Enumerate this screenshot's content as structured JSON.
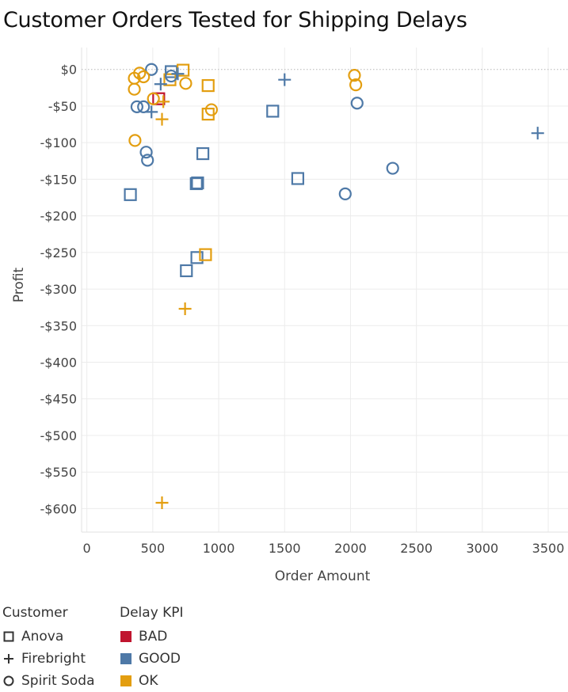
{
  "chart_data": {
    "type": "scatter",
    "title": "Customer Orders Tested for Shipping Delays",
    "xlabel": "Order Amount",
    "ylabel": "Profit",
    "xlim": [
      -40,
      3650
    ],
    "ylim": [
      -632,
      30
    ],
    "x_ticks": [
      0,
      500,
      1000,
      1500,
      2000,
      2500,
      3000,
      3500
    ],
    "y_ticks": [
      0,
      -50,
      -100,
      -150,
      -200,
      -250,
      -300,
      -350,
      -400,
      -450,
      -500,
      -550,
      -600
    ],
    "y_tick_labels": [
      "$0",
      "-$50",
      "-$100",
      "-$150",
      "-$200",
      "-$250",
      "-$300",
      "-$350",
      "-$400",
      "-$450",
      "-$500",
      "-$550",
      "-$600"
    ],
    "grid": true,
    "legend_placement": "bottom-left",
    "shape_legend": {
      "title": "Customer",
      "items": [
        {
          "label": "Anova",
          "shape": "square"
        },
        {
          "label": "Firebright",
          "shape": "plus"
        },
        {
          "label": "Spirit Soda",
          "shape": "circle"
        }
      ]
    },
    "color_legend": {
      "title": "Delay KPI",
      "items": [
        {
          "label": "BAD",
          "color": "#c0152f"
        },
        {
          "label": "GOOD",
          "color": "#4e79a7"
        },
        {
          "label": "OK",
          "color": "#e39e10"
        }
      ]
    },
    "points": [
      {
        "x": 545,
        "y": -40,
        "customer": "Anova",
        "kpi": "BAD"
      },
      {
        "x": 330,
        "y": -171,
        "customer": "Anova",
        "kpi": "GOOD"
      },
      {
        "x": 640,
        "y": -3,
        "customer": "Anova",
        "kpi": "GOOD"
      },
      {
        "x": 840,
        "y": -155,
        "customer": "Anova",
        "kpi": "GOOD"
      },
      {
        "x": 830,
        "y": -156,
        "customer": "Anova",
        "kpi": "GOOD"
      },
      {
        "x": 880,
        "y": -115,
        "customer": "Anova",
        "kpi": "GOOD"
      },
      {
        "x": 835,
        "y": -257,
        "customer": "Anova",
        "kpi": "GOOD"
      },
      {
        "x": 755,
        "y": -275,
        "customer": "Anova",
        "kpi": "GOOD"
      },
      {
        "x": 1410,
        "y": -57,
        "customer": "Anova",
        "kpi": "GOOD"
      },
      {
        "x": 1600,
        "y": -149,
        "customer": "Anova",
        "kpi": "GOOD"
      },
      {
        "x": 730,
        "y": -1,
        "customer": "Anova",
        "kpi": "OK"
      },
      {
        "x": 630,
        "y": -14,
        "customer": "Anova",
        "kpi": "OK"
      },
      {
        "x": 920,
        "y": -22,
        "customer": "Anova",
        "kpi": "OK"
      },
      {
        "x": 920,
        "y": -61,
        "customer": "Anova",
        "kpi": "OK"
      },
      {
        "x": 900,
        "y": -253,
        "customer": "Anova",
        "kpi": "OK"
      },
      {
        "x": 560,
        "y": -20,
        "customer": "Firebright",
        "kpi": "GOOD"
      },
      {
        "x": 690,
        "y": -6,
        "customer": "Firebright",
        "kpi": "GOOD"
      },
      {
        "x": 490,
        "y": -58,
        "customer": "Firebright",
        "kpi": "GOOD"
      },
      {
        "x": 1500,
        "y": -14,
        "customer": "Firebright",
        "kpi": "GOOD"
      },
      {
        "x": 3420,
        "y": -87,
        "customer": "Firebright",
        "kpi": "GOOD"
      },
      {
        "x": 580,
        "y": -44,
        "customer": "Firebright",
        "kpi": "OK"
      },
      {
        "x": 570,
        "y": -68,
        "customer": "Firebright",
        "kpi": "OK"
      },
      {
        "x": 745,
        "y": -327,
        "customer": "Firebright",
        "kpi": "OK"
      },
      {
        "x": 570,
        "y": -592,
        "customer": "Firebright",
        "kpi": "OK"
      },
      {
        "x": 490,
        "y": 0,
        "customer": "Spirit Soda",
        "kpi": "GOOD"
      },
      {
        "x": 380,
        "y": -51,
        "customer": "Spirit Soda",
        "kpi": "GOOD"
      },
      {
        "x": 430,
        "y": -51,
        "customer": "Spirit Soda",
        "kpi": "GOOD"
      },
      {
        "x": 450,
        "y": -113,
        "customer": "Spirit Soda",
        "kpi": "GOOD"
      },
      {
        "x": 460,
        "y": -124,
        "customer": "Spirit Soda",
        "kpi": "GOOD"
      },
      {
        "x": 640,
        "y": -9,
        "customer": "Spirit Soda",
        "kpi": "GOOD"
      },
      {
        "x": 2050,
        "y": -46,
        "customer": "Spirit Soda",
        "kpi": "GOOD"
      },
      {
        "x": 2320,
        "y": -135,
        "customer": "Spirit Soda",
        "kpi": "GOOD"
      },
      {
        "x": 1960,
        "y": -170,
        "customer": "Spirit Soda",
        "kpi": "GOOD"
      },
      {
        "x": 360,
        "y": -12,
        "customer": "Spirit Soda",
        "kpi": "OK"
      },
      {
        "x": 400,
        "y": -5,
        "customer": "Spirit Soda",
        "kpi": "OK"
      },
      {
        "x": 430,
        "y": -10,
        "customer": "Spirit Soda",
        "kpi": "OK"
      },
      {
        "x": 360,
        "y": -27,
        "customer": "Spirit Soda",
        "kpi": "OK"
      },
      {
        "x": 365,
        "y": -97,
        "customer": "Spirit Soda",
        "kpi": "OK"
      },
      {
        "x": 505,
        "y": -40,
        "customer": "Spirit Soda",
        "kpi": "OK"
      },
      {
        "x": 750,
        "y": -19,
        "customer": "Spirit Soda",
        "kpi": "OK"
      },
      {
        "x": 945,
        "y": -55,
        "customer": "Spirit Soda",
        "kpi": "OK"
      },
      {
        "x": 2030,
        "y": -8,
        "customer": "Spirit Soda",
        "kpi": "OK"
      },
      {
        "x": 2040,
        "y": -21,
        "customer": "Spirit Soda",
        "kpi": "OK"
      }
    ]
  }
}
